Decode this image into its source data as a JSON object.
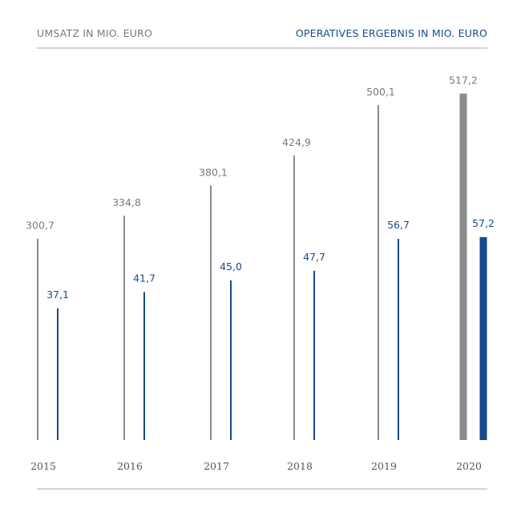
{
  "legend": {
    "left_label": "UMSATZ IN MIO. EURO",
    "right_label": "OPERATIVES ERGEBNIS IN MIO. EURO"
  },
  "colors": {
    "umsatz": "#8c8c8c",
    "ergebnis": "#174a8c",
    "rule": "#d3d3d3"
  },
  "chart_data": {
    "type": "bar",
    "categories": [
      "2015",
      "2016",
      "2017",
      "2018",
      "2019",
      "2020"
    ],
    "series": [
      {
        "name": "UMSATZ IN MIO. EURO",
        "values": [
          300.7,
          334.8,
          380.1,
          424.9,
          500.1,
          517.2
        ],
        "labels": [
          "300,7",
          "334,8",
          "380,1",
          "424,9",
          "500,1",
          "517,2"
        ]
      },
      {
        "name": "OPERATIVES ERGEBNIS IN MIO. EURO",
        "values": [
          37.1,
          41.7,
          45.0,
          47.7,
          56.7,
          57.2
        ],
        "labels": [
          "37,1",
          "41,7",
          "45,0",
          "47,7",
          "56,7",
          "57,2"
        ]
      }
    ],
    "highlight_category": "2020",
    "legend": "top",
    "grid": false
  }
}
